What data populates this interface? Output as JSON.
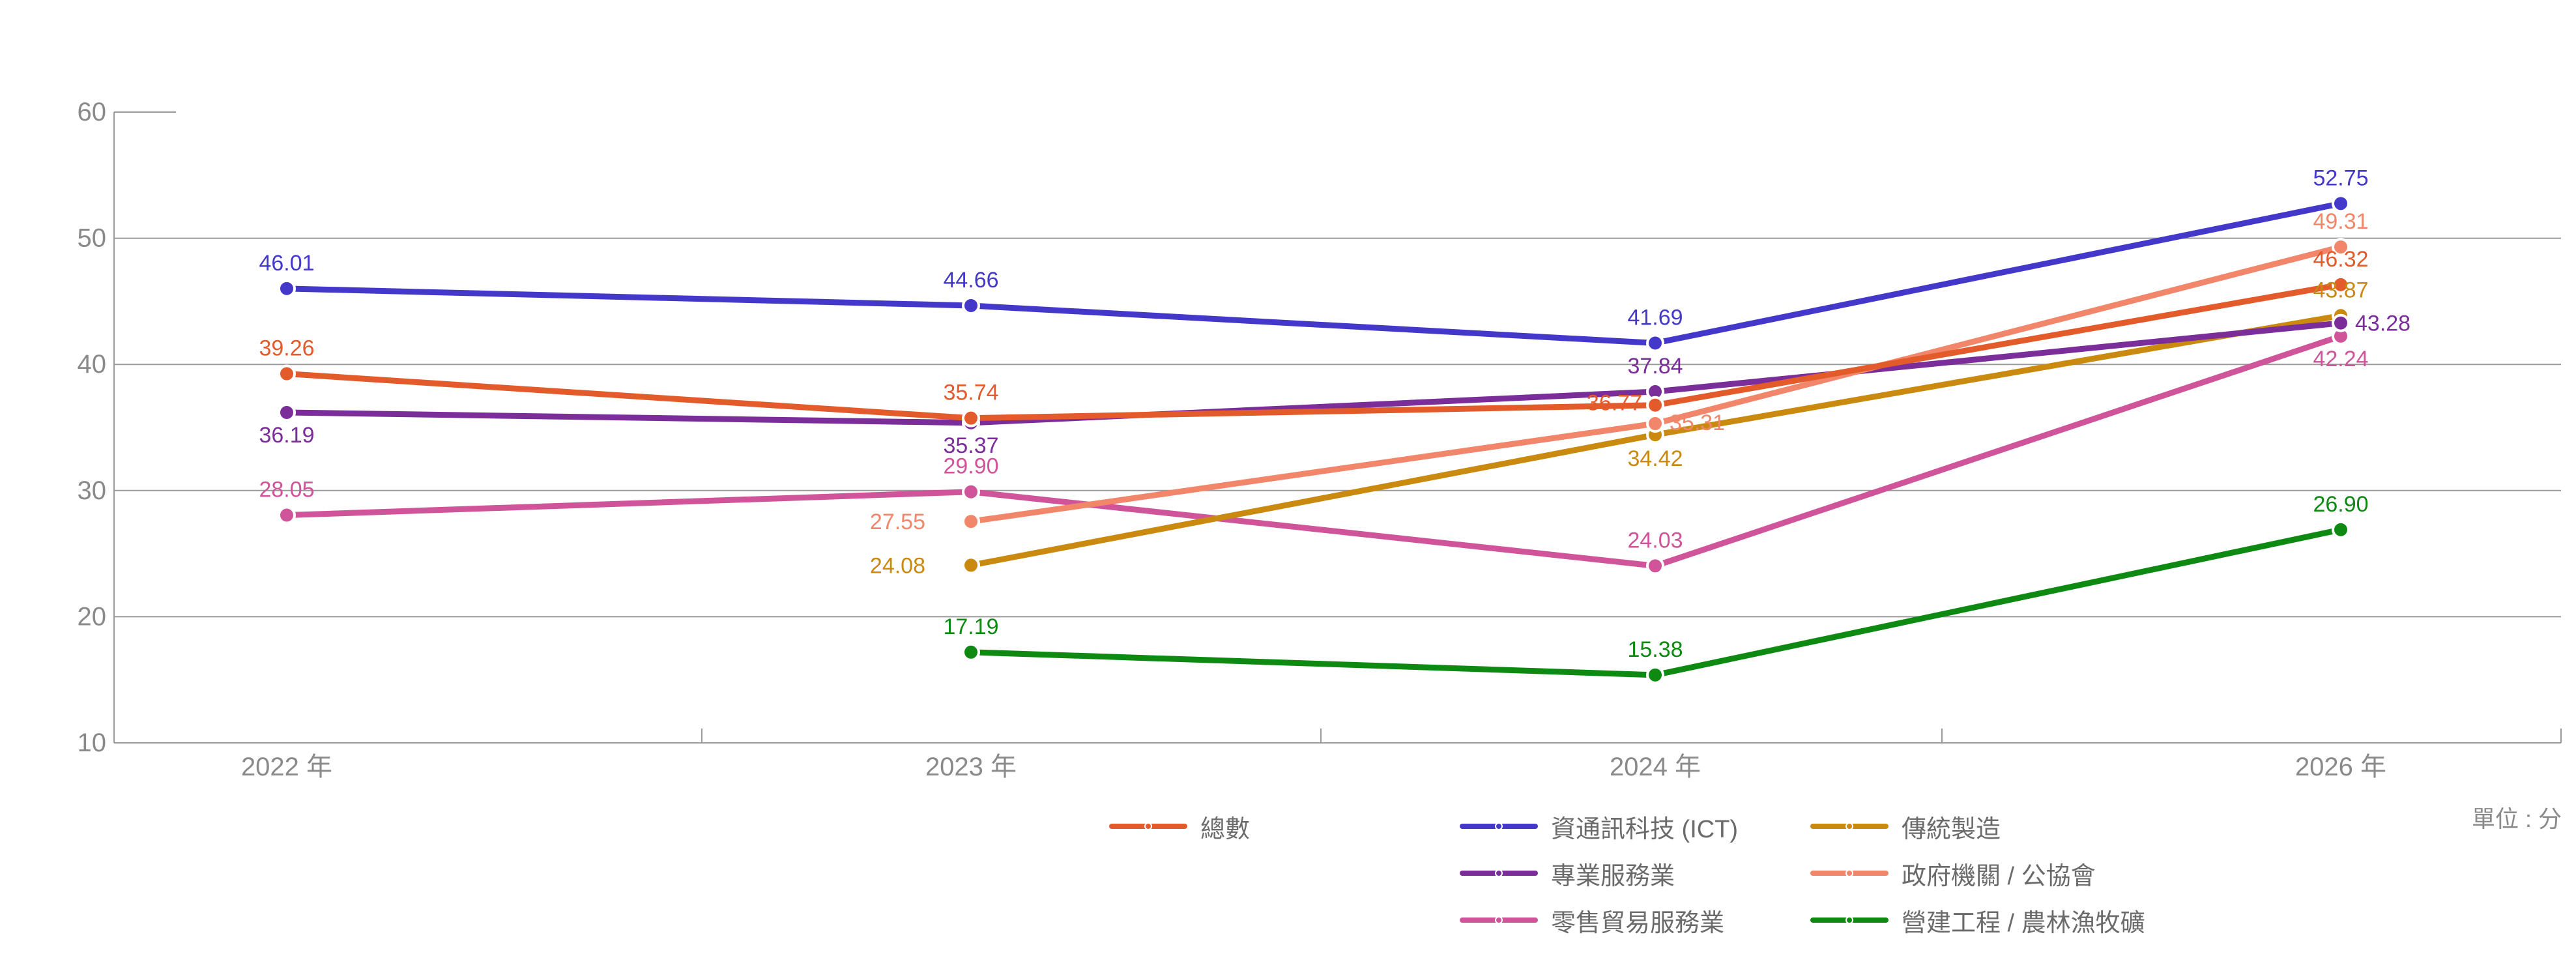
{
  "chart_data": {
    "type": "line",
    "categories": [
      "2022 年",
      "2023 年",
      "2024 年",
      "2026 年"
    ],
    "ylim": [
      10,
      60
    ],
    "yticks": [
      "10",
      "20",
      "30",
      "40",
      "50",
      "60"
    ],
    "grid": true,
    "legend_position": "bottom",
    "unit_label": "單位 : 分",
    "series": [
      {
        "name": "總數",
        "color": "#e35a2b",
        "values": [
          39.26,
          35.74,
          36.77,
          46.32
        ],
        "labels": [
          "39.26",
          "35.74",
          "36.77",
          "46.32"
        ]
      },
      {
        "name": "資通訊科技 (ICT)",
        "color": "#4338ca",
        "values": [
          46.01,
          44.66,
          41.69,
          52.75
        ],
        "labels": [
          "46.01",
          "44.66",
          "41.69",
          "52.75"
        ]
      },
      {
        "name": "傳統製造",
        "color": "#c98a0f",
        "values": [
          null,
          24.08,
          34.42,
          43.87
        ],
        "labels": [
          null,
          "24.08",
          "34.42",
          "43.87"
        ]
      },
      {
        "name": "專業服務業",
        "color": "#7b2e9a",
        "values": [
          36.19,
          35.37,
          37.84,
          43.28
        ],
        "labels": [
          "36.19",
          "35.37",
          "37.84",
          "43.28"
        ]
      },
      {
        "name": "政府機關 / 公協會",
        "color": "#f2866a",
        "values": [
          null,
          27.55,
          35.31,
          49.31
        ],
        "labels": [
          null,
          "27.55",
          "35.31",
          "49.31"
        ]
      },
      {
        "name": "零售貿易服務業",
        "color": "#cf549a",
        "values": [
          28.05,
          29.9,
          24.03,
          42.24
        ],
        "labels": [
          "28.05",
          "29.90",
          "24.03",
          "42.24"
        ]
      },
      {
        "name": "營建工程 / 農林漁牧礦",
        "color": "#0e8a12",
        "values": [
          null,
          17.19,
          15.38,
          26.9
        ],
        "labels": [
          null,
          "17.19",
          "15.38",
          "26.90"
        ]
      }
    ]
  }
}
